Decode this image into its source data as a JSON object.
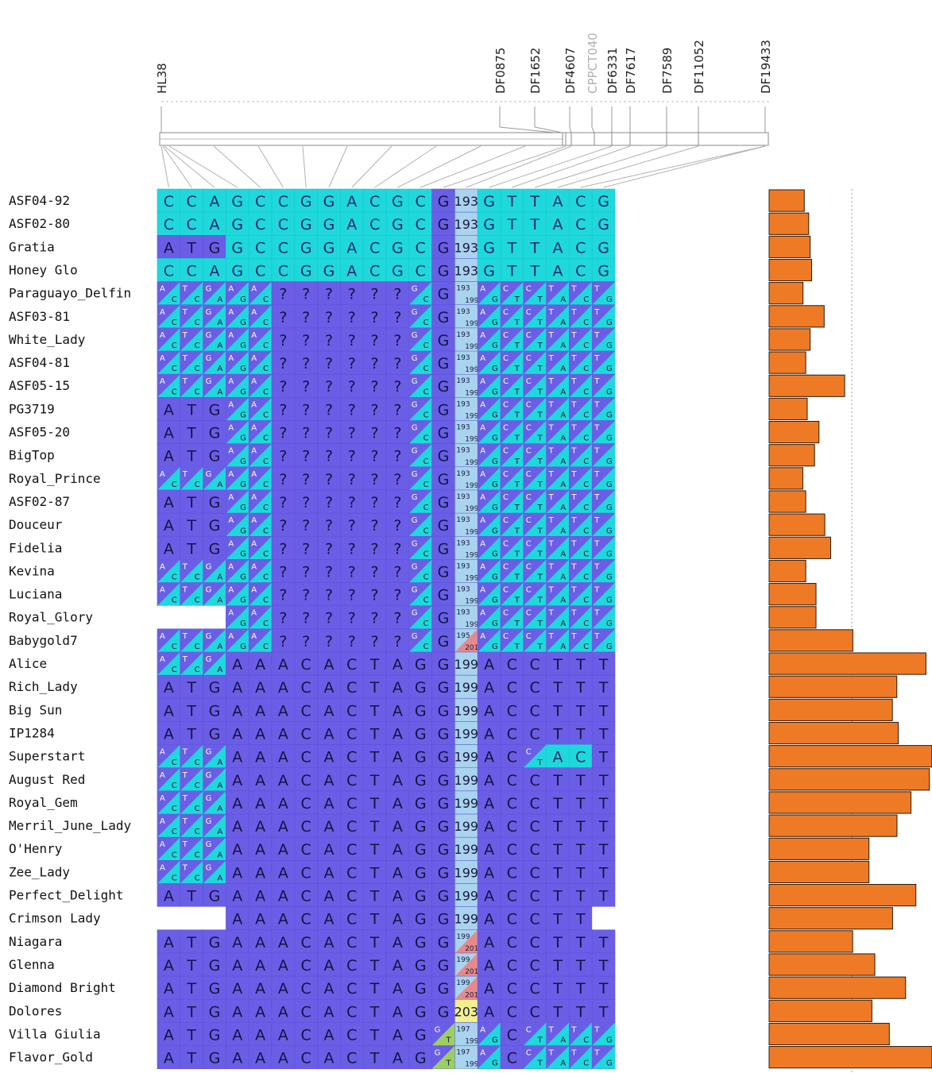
{
  "colors": {
    "purple": "#6a5ee6",
    "purple_dark": "#5e52d9",
    "cyan": "#1fd8dc",
    "cyan_dark": "#12c9cd",
    "het_red": "#e58a8a",
    "het_green": "#9ccf62",
    "count_yellow": "#f2ef8e",
    "count_blue": "#a9d3ee",
    "bar_orange": "#ee7a25"
  },
  "markers": [
    {
      "name": "HL38",
      "dim": false
    },
    {
      "name": "DF0875",
      "dim": false
    },
    {
      "name": "DF1652",
      "dim": false
    },
    {
      "name": "DF4607",
      "dim": false
    },
    {
      "name": "CPPCT040",
      "dim": true
    },
    {
      "name": "DF6331",
      "dim": false
    },
    {
      "name": "DF7617",
      "dim": false
    },
    {
      "name": "DF7589",
      "dim": false
    },
    {
      "name": "DF11052",
      "dim": false
    },
    {
      "name": "DF19433",
      "dim": false
    }
  ],
  "chart_data": {
    "type": "heatmap",
    "title": "",
    "xlabel": "",
    "ylabel": "",
    "cell_code_legend": "Each cell is one column of the haplotype matrix. 'C'/'A' = solid cyan/purple allele, 'X/Y' = heterozygous split (cyan/purple), '?' = unknown, '' = missing (white), number = allele size; 'n/m' = split size cell.",
    "rows": [
      {
        "name": "ASF04-92",
        "bar": 0.216
      },
      {
        "name": "ASF02-80",
        "bar": 0.243
      },
      {
        "name": "Gratia",
        "bar": 0.252
      },
      {
        "name": "Honey Glo",
        "bar": 0.261
      },
      {
        "name": "Paraguayo_Delfin",
        "bar": 0.208
      },
      {
        "name": "ASF03-81",
        "bar": 0.338
      },
      {
        "name": "White_Lady",
        "bar": 0.252
      },
      {
        "name": "ASF04-81",
        "bar": 0.225
      },
      {
        "name": "ASF05-15",
        "bar": 0.464
      },
      {
        "name": "PG3719",
        "bar": 0.234
      },
      {
        "name": "ASF05-20",
        "bar": 0.306
      },
      {
        "name": "BigTop",
        "bar": 0.279
      },
      {
        "name": "Royal_Prince",
        "bar": 0.207
      },
      {
        "name": "ASF02-87",
        "bar": 0.225
      },
      {
        "name": "Douceur",
        "bar": 0.342
      },
      {
        "name": "Fidelia",
        "bar": 0.378
      },
      {
        "name": "Kevina",
        "bar": 0.225
      },
      {
        "name": "Luciana",
        "bar": 0.288
      },
      {
        "name": "Royal_Glory",
        "bar": 0.288
      },
      {
        "name": "Babygold7",
        "bar": 0.514
      },
      {
        "name": "Alice",
        "bar": 0.963
      },
      {
        "name": "Rich_Lady",
        "bar": 0.784
      },
      {
        "name": "Big Sun",
        "bar": 0.757
      },
      {
        "name": "IP1284",
        "bar": 0.793
      },
      {
        "name": "Superstart",
        "bar": 0.999
      },
      {
        "name": "August Red",
        "bar": 0.984
      },
      {
        "name": "Royal_Gem",
        "bar": 0.871
      },
      {
        "name": "Merril_June_Lady",
        "bar": 0.785
      },
      {
        "name": "O'Henry",
        "bar": 0.613
      },
      {
        "name": "Zee_Lady",
        "bar": 0.613
      },
      {
        "name": "Perfect_Delight",
        "bar": 0.901
      },
      {
        "name": "Crimson Lady",
        "bar": 0.758
      },
      {
        "name": "Niagara",
        "bar": 0.513
      },
      {
        "name": "Glenna",
        "bar": 0.649
      },
      {
        "name": "Diamond Bright",
        "bar": 0.838
      },
      {
        "name": "Dolores",
        "bar": 0.631
      },
      {
        "name": "Villa Giulia",
        "bar": 0.738
      },
      {
        "name": "Flavor_Gold",
        "bar": 1.0
      }
    ],
    "cells": [
      [
        "C",
        "C",
        "A",
        "G",
        "C",
        "C",
        "G",
        "G",
        "A",
        "C",
        "G",
        "C",
        "G",
        "193",
        "G",
        "T",
        "T",
        "A",
        "C",
        "G"
      ],
      [
        "C",
        "C",
        "A",
        "G",
        "C",
        "C",
        "G",
        "G",
        "A",
        "C",
        "G",
        "C",
        "G",
        "193",
        "G",
        "T",
        "T",
        "A",
        "C",
        "G"
      ],
      [
        "A",
        "T",
        "G",
        "G",
        "C",
        "C",
        "G",
        "G",
        "A",
        "C",
        "G",
        "C",
        "G",
        "193",
        "G",
        "T",
        "T",
        "A",
        "C",
        "G"
      ],
      [
        "C",
        "C",
        "A",
        "G",
        "C",
        "C",
        "G",
        "G",
        "A",
        "C",
        "G",
        "C",
        "G",
        "193",
        "G",
        "T",
        "T",
        "A",
        "C",
        "G"
      ],
      [
        "A/C",
        "T/C",
        "G/A",
        "A/G",
        "A/C",
        "?",
        "?",
        "?",
        "?",
        "?",
        "?",
        "G/C",
        "G",
        "193/199",
        "A/G",
        "C/T",
        "C/T",
        "T/A",
        "T/C",
        "T/G"
      ],
      [
        "A/C",
        "T/C",
        "G/A",
        "A/G",
        "A/C",
        "?",
        "?",
        "?",
        "?",
        "?",
        "?",
        "G/C",
        "G",
        "193/199",
        "A/G",
        "C/T",
        "C/T",
        "T/A",
        "T/C",
        "T/G"
      ],
      [
        "A/C",
        "T/C",
        "G/A",
        "A/G",
        "A/C",
        "?",
        "?",
        "?",
        "?",
        "?",
        "?",
        "G/C",
        "G",
        "193/199",
        "A/G",
        "C/T",
        "C/T",
        "T/A",
        "T/C",
        "T/G"
      ],
      [
        "A/C",
        "T/C",
        "G/A",
        "A/G",
        "A/C",
        "?",
        "?",
        "?",
        "?",
        "?",
        "?",
        "G/C",
        "G",
        "193/199",
        "A/G",
        "C/T",
        "C/T",
        "T/A",
        "T/C",
        "T/G"
      ],
      [
        "A/C",
        "T/C",
        "G/A",
        "A/G",
        "A/C",
        "?",
        "?",
        "?",
        "?",
        "?",
        "?",
        "G/C",
        "G",
        "193/199",
        "A/G",
        "C/T",
        "C/T",
        "T/A",
        "T/C",
        "T/G"
      ],
      [
        "A",
        "T",
        "G",
        "A/G",
        "A/C",
        "?",
        "?",
        "?",
        "?",
        "?",
        "?",
        "G/C",
        "G",
        "193/199",
        "A/G",
        "C/T",
        "C/T",
        "T/A",
        "T/C",
        "T/G"
      ],
      [
        "A",
        "T",
        "G",
        "A/G",
        "A/C",
        "?",
        "?",
        "?",
        "?",
        "?",
        "?",
        "G/C",
        "G",
        "193/199",
        "A/G",
        "C/T",
        "C/T",
        "T/A",
        "T/C",
        "T/G"
      ],
      [
        "A",
        "T",
        "G",
        "A/G",
        "A/C",
        "?",
        "?",
        "?",
        "?",
        "?",
        "?",
        "G/C",
        "G",
        "193/199",
        "A/G",
        "C/T",
        "C/T",
        "T/A",
        "T/C",
        "T/G"
      ],
      [
        "A/C",
        "T/C",
        "G/A",
        "A/G",
        "A/C",
        "?",
        "?",
        "?",
        "?",
        "?",
        "?",
        "G/C",
        "G",
        "193/199",
        "A/G",
        "C/T",
        "C/T",
        "T/A",
        "T/C",
        "T/G"
      ],
      [
        "A",
        "T",
        "G",
        "A/G",
        "A/C",
        "?",
        "?",
        "?",
        "?",
        "?",
        "?",
        "G/C",
        "G",
        "193/199",
        "A/G",
        "C/T",
        "C/T",
        "T/A",
        "T/C",
        "T/G"
      ],
      [
        "A",
        "T",
        "G",
        "A/G",
        "A/C",
        "?",
        "?",
        "?",
        "?",
        "?",
        "?",
        "G/C",
        "G",
        "193/199",
        "A/G",
        "C/T",
        "C/T",
        "T/A",
        "T/C",
        "T/G"
      ],
      [
        "A",
        "T",
        "G",
        "A/G",
        "A/C",
        "?",
        "?",
        "?",
        "?",
        "?",
        "?",
        "G/C",
        "G",
        "193/199",
        "A/G",
        "C/T",
        "C/T",
        "T/A",
        "T/C",
        "T/G"
      ],
      [
        "A/C",
        "T/C",
        "G/A",
        "A/G",
        "A/C",
        "?",
        "?",
        "?",
        "?",
        "?",
        "?",
        "G/C",
        "G",
        "193/199",
        "A/G",
        "C/T",
        "C/T",
        "T/A",
        "T/C",
        "T/G"
      ],
      [
        "A/C",
        "T/C",
        "G/A",
        "A/G",
        "A/C",
        "?",
        "?",
        "?",
        "?",
        "?",
        "?",
        "G/C",
        "G",
        "193/199",
        "A/G",
        "C/T",
        "C/T",
        "T/A",
        "T/C",
        "T/G"
      ],
      [
        "",
        "",
        "",
        "A/G",
        "A/C",
        "?",
        "?",
        "?",
        "?",
        "?",
        "?",
        "G/C",
        "G",
        "193/199",
        "A/G",
        "C/T",
        "C/T",
        "T/A",
        "T/C",
        "T/G"
      ],
      [
        "A/C",
        "T/C",
        "G/A",
        "A/G",
        "A/C",
        "?",
        "?",
        "?",
        "?",
        "?",
        "?",
        "G/C",
        "G",
        "195/201",
        "A/G",
        "C/T",
        "C/T",
        "T/A",
        "T/C",
        "T/G"
      ],
      [
        "A/C",
        "T/C",
        "G/A",
        "A",
        "A",
        "A",
        "C",
        "A",
        "C",
        "T",
        "A",
        "G",
        "G",
        "199",
        "A",
        "C",
        "C",
        "T",
        "T",
        "T"
      ],
      [
        "A",
        "T",
        "G",
        "A",
        "A",
        "A",
        "C",
        "A",
        "C",
        "T",
        "A",
        "G",
        "G",
        "199",
        "A",
        "C",
        "C",
        "T",
        "T",
        "T"
      ],
      [
        "A",
        "T",
        "G",
        "A",
        "A",
        "A",
        "C",
        "A",
        "C",
        "T",
        "A",
        "G",
        "G",
        "199",
        "A",
        "C",
        "C",
        "T",
        "T",
        "T"
      ],
      [
        "A",
        "T",
        "G",
        "A",
        "A",
        "A",
        "C",
        "A",
        "C",
        "T",
        "A",
        "G",
        "G",
        "199",
        "A",
        "C",
        "C",
        "T",
        "T",
        "T"
      ],
      [
        "A/C",
        "T/C",
        "G/A",
        "A",
        "A",
        "A",
        "C",
        "A",
        "C",
        "T",
        "A",
        "G",
        "G",
        "199",
        "A",
        "C",
        "C/T",
        "A",
        "C",
        "T"
      ],
      [
        "A/C",
        "T/C",
        "G/A",
        "A",
        "A",
        "A",
        "C",
        "A",
        "C",
        "T",
        "A",
        "G",
        "G",
        "199",
        "A",
        "C",
        "C",
        "T",
        "T",
        "T"
      ],
      [
        "A/C",
        "T/C",
        "G/A",
        "A",
        "A",
        "A",
        "C",
        "A",
        "C",
        "T",
        "A",
        "G",
        "G",
        "199",
        "A",
        "C",
        "C",
        "T",
        "T",
        "T"
      ],
      [
        "A/C",
        "T/C",
        "G/A",
        "A",
        "A",
        "A",
        "C",
        "A",
        "C",
        "T",
        "A",
        "G",
        "G",
        "199",
        "A",
        "C",
        "C",
        "T",
        "T",
        "T"
      ],
      [
        "A/C",
        "T/C",
        "G/A",
        "A",
        "A",
        "A",
        "C",
        "A",
        "C",
        "T",
        "A",
        "G",
        "G",
        "199",
        "A",
        "C",
        "C",
        "T",
        "T",
        "T"
      ],
      [
        "A/C",
        "T/C",
        "G/A",
        "A",
        "A",
        "A",
        "C",
        "A",
        "C",
        "T",
        "A",
        "G",
        "G",
        "199",
        "A",
        "C",
        "C",
        "T",
        "T",
        "T"
      ],
      [
        "A",
        "T",
        "G",
        "A",
        "A",
        "A",
        "C",
        "A",
        "C",
        "T",
        "A",
        "G",
        "G",
        "199",
        "A",
        "C",
        "C",
        "T",
        "T",
        "T"
      ],
      [
        "",
        "",
        "",
        "A",
        "A",
        "A",
        "C",
        "A",
        "C",
        "T",
        "A",
        "G",
        "G",
        "199",
        "A",
        "C",
        "C",
        "T",
        "T",
        ""
      ],
      [
        "A",
        "T",
        "G",
        "A",
        "A",
        "A",
        "C",
        "A",
        "C",
        "T",
        "A",
        "G",
        "G",
        "199/201",
        "A",
        "C",
        "C",
        "T",
        "T",
        "T"
      ],
      [
        "A",
        "T",
        "G",
        "A",
        "A",
        "A",
        "C",
        "A",
        "C",
        "T",
        "A",
        "G",
        "G",
        "199/201",
        "A",
        "C",
        "C",
        "T",
        "T",
        "T"
      ],
      [
        "A",
        "T",
        "G",
        "A",
        "A",
        "A",
        "C",
        "A",
        "C",
        "T",
        "A",
        "G",
        "G",
        "199/201",
        "A",
        "C",
        "C",
        "T",
        "T",
        "T"
      ],
      [
        "A",
        "T",
        "G",
        "A",
        "A",
        "A",
        "C",
        "A",
        "C",
        "T",
        "A",
        "G",
        "G",
        "203",
        "A",
        "C",
        "C",
        "T",
        "T",
        "T"
      ],
      [
        "A",
        "T",
        "G",
        "A",
        "A",
        "A",
        "C",
        "A",
        "C",
        "T",
        "A",
        "G",
        "G/T",
        "197/199",
        "A/G",
        "C",
        "C/T",
        "T/A",
        "T/C",
        "T/G"
      ],
      [
        "A",
        "T",
        "G",
        "A",
        "A",
        "A",
        "C",
        "A",
        "C",
        "T",
        "A",
        "G",
        "G/T",
        "197/199",
        "A/G",
        "C",
        "C/T",
        "T/A",
        "T/C",
        "T/G"
      ]
    ],
    "cyan_cells": [
      [
        0,
        0
      ],
      [
        0,
        1
      ],
      [
        0,
        2
      ],
      [
        0,
        3
      ],
      [
        0,
        4
      ],
      [
        0,
        5
      ],
      [
        0,
        6
      ],
      [
        0,
        7
      ],
      [
        0,
        8
      ],
      [
        0,
        9
      ],
      [
        0,
        10
      ],
      [
        0,
        11
      ],
      [
        0,
        14
      ],
      [
        0,
        15
      ],
      [
        0,
        16
      ],
      [
        0,
        17
      ],
      [
        0,
        18
      ],
      [
        0,
        19
      ],
      [
        1,
        0
      ],
      [
        1,
        1
      ],
      [
        1,
        2
      ],
      [
        1,
        3
      ],
      [
        1,
        4
      ],
      [
        1,
        5
      ],
      [
        1,
        6
      ],
      [
        1,
        7
      ],
      [
        1,
        8
      ],
      [
        1,
        9
      ],
      [
        1,
        10
      ],
      [
        1,
        11
      ],
      [
        1,
        14
      ],
      [
        1,
        15
      ],
      [
        1,
        16
      ],
      [
        1,
        17
      ],
      [
        1,
        18
      ],
      [
        1,
        19
      ],
      [
        2,
        3
      ],
      [
        2,
        4
      ],
      [
        2,
        5
      ],
      [
        2,
        6
      ],
      [
        2,
        7
      ],
      [
        2,
        8
      ],
      [
        2,
        9
      ],
      [
        2,
        10
      ],
      [
        2,
        11
      ],
      [
        2,
        14
      ],
      [
        2,
        15
      ],
      [
        2,
        16
      ],
      [
        2,
        17
      ],
      [
        2,
        18
      ],
      [
        2,
        19
      ],
      [
        3,
        0
      ],
      [
        3,
        1
      ],
      [
        3,
        2
      ],
      [
        3,
        3
      ],
      [
        3,
        4
      ],
      [
        3,
        5
      ],
      [
        3,
        6
      ],
      [
        3,
        7
      ],
      [
        3,
        8
      ],
      [
        3,
        9
      ],
      [
        3,
        10
      ],
      [
        3,
        11
      ],
      [
        3,
        14
      ],
      [
        3,
        15
      ],
      [
        3,
        16
      ],
      [
        3,
        17
      ],
      [
        3,
        18
      ],
      [
        3,
        19
      ],
      [
        24,
        17
      ],
      [
        24,
        18
      ]
    ]
  }
}
